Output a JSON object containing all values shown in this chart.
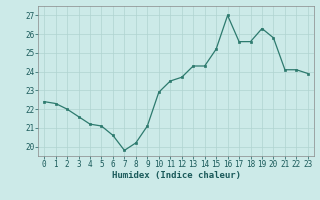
{
  "x": [
    0,
    1,
    2,
    3,
    4,
    5,
    6,
    7,
    8,
    9,
    10,
    11,
    12,
    13,
    14,
    15,
    16,
    17,
    18,
    19,
    20,
    21,
    22,
    23
  ],
  "y": [
    22.4,
    22.3,
    22.0,
    21.6,
    21.2,
    21.1,
    20.6,
    19.8,
    20.2,
    21.1,
    22.9,
    23.5,
    23.7,
    24.3,
    24.3,
    25.2,
    27.0,
    25.6,
    25.6,
    26.3,
    25.8,
    24.1,
    24.1,
    23.9
  ],
  "line_color": "#2d7a6e",
  "marker_color": "#2d7a6e",
  "bg_color": "#cceae8",
  "grid_color": "#b0d4d0",
  "xlabel": "Humidex (Indice chaleur)",
  "ylim": [
    19.5,
    27.5
  ],
  "xlim": [
    -0.5,
    23.5
  ],
  "yticks": [
    20,
    21,
    22,
    23,
    24,
    25,
    26,
    27
  ],
  "xticks": [
    0,
    1,
    2,
    3,
    4,
    5,
    6,
    7,
    8,
    9,
    10,
    11,
    12,
    13,
    14,
    15,
    16,
    17,
    18,
    19,
    20,
    21,
    22,
    23
  ],
  "tick_fontsize": 5.5,
  "xlabel_fontsize": 6.5,
  "spine_color": "#888888"
}
